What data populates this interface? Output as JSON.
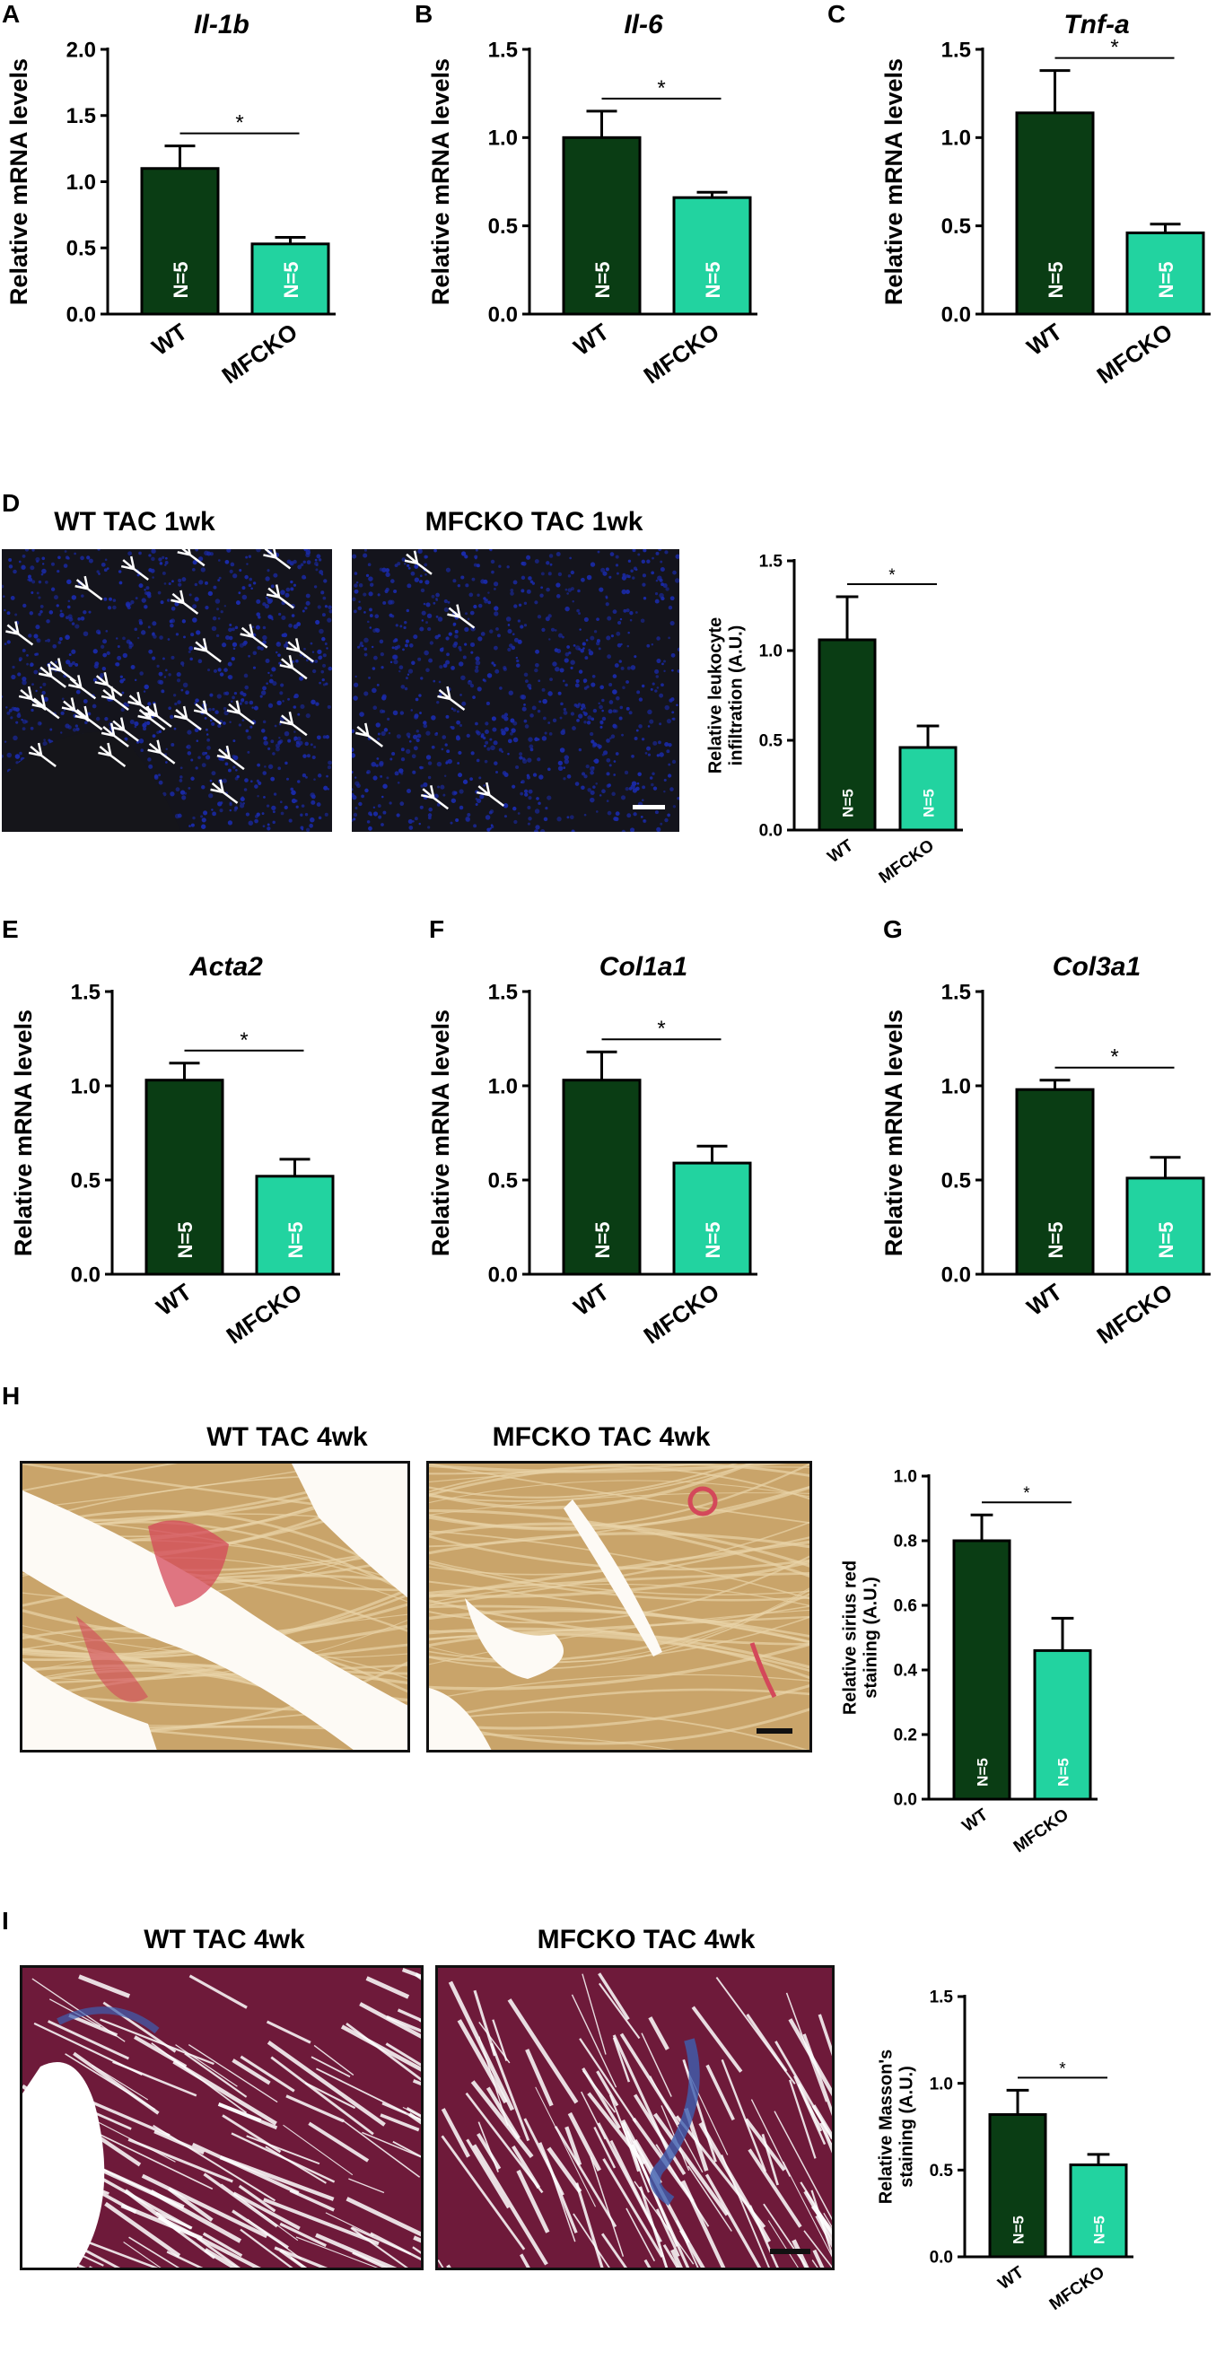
{
  "panels": {
    "A": {
      "letter": "A"
    },
    "B": {
      "letter": "B"
    },
    "C": {
      "letter": "C"
    },
    "D": {
      "letter": "D",
      "img_left_title": "WT TAC 1wk",
      "img_right_title": "MFCKO TAC 1wk"
    },
    "E": {
      "letter": "E"
    },
    "F": {
      "letter": "F"
    },
    "G": {
      "letter": "G"
    },
    "H": {
      "letter": "H",
      "img_left_title": "WT TAC 4wk",
      "img_right_title": "MFCKO TAC 4wk"
    },
    "I": {
      "letter": "I",
      "img_left_title": "WT TAC 4wk",
      "img_right_title": "MFCKO TAC 4wk"
    }
  },
  "colors": {
    "wt": "#0a3d14",
    "mfcko": "#22d3a0",
    "nuclei": "#1a2aa8",
    "sirius_bg": "#c9a46a",
    "sirius_red": "#d4485a",
    "masson_red": "#6e1a3a",
    "masson_blue": "#3d5fb0"
  },
  "chart_data": [
    {
      "id": "A",
      "type": "bar",
      "title": "Il-1b",
      "title_italic": true,
      "ylabel": "Relative mRNA levels",
      "categories": [
        "WT",
        "MFCKO"
      ],
      "values": [
        1.1,
        0.53
      ],
      "errors": [
        0.17,
        0.05
      ],
      "ylim": [
        0,
        2.0
      ],
      "yticks": [
        "0.0",
        "0.5",
        "1.0",
        "1.5",
        "2.0"
      ],
      "n_labels": [
        "N=5",
        "N=5"
      ],
      "significance": "*"
    },
    {
      "id": "B",
      "type": "bar",
      "title": "Il-6",
      "title_italic": true,
      "ylabel": "Relative mRNA levels",
      "categories": [
        "WT",
        "MFCKO"
      ],
      "values": [
        1.0,
        0.66
      ],
      "errors": [
        0.15,
        0.03
      ],
      "ylim": [
        0,
        1.5
      ],
      "yticks": [
        "0.0",
        "0.5",
        "1.0",
        "1.5"
      ],
      "n_labels": [
        "N=5",
        "N=5"
      ],
      "significance": "*"
    },
    {
      "id": "C",
      "type": "bar",
      "title": "Tnf-a",
      "title_italic": true,
      "ylabel": "Relative mRNA levels",
      "categories": [
        "WT",
        "MFCKO"
      ],
      "values": [
        1.14,
        0.46
      ],
      "errors": [
        0.24,
        0.05
      ],
      "ylim": [
        0,
        1.5
      ],
      "yticks": [
        "0.0",
        "0.5",
        "1.0",
        "1.5"
      ],
      "n_labels": [
        "N=5",
        "N=5"
      ],
      "significance": "*"
    },
    {
      "id": "D",
      "type": "bar",
      "title": "",
      "ylabel": [
        "Relative leukocyte",
        "infiltration  (A.U.)"
      ],
      "categories": [
        "WT",
        "MFCKO"
      ],
      "values": [
        1.06,
        0.46
      ],
      "errors": [
        0.24,
        0.12
      ],
      "ylim": [
        0,
        1.5
      ],
      "yticks": [
        "0.0",
        "0.5",
        "1.0",
        "1.5"
      ],
      "n_labels": [
        "N=5",
        "N=5"
      ],
      "significance": "*"
    },
    {
      "id": "E",
      "type": "bar",
      "title": "Acta2",
      "title_italic": true,
      "ylabel": "Relative mRNA levels",
      "categories": [
        "WT",
        "MFCKO"
      ],
      "values": [
        1.03,
        0.52
      ],
      "errors": [
        0.09,
        0.09
      ],
      "ylim": [
        0,
        1.5
      ],
      "yticks": [
        "0.0",
        "0.5",
        "1.0",
        "1.5"
      ],
      "n_labels": [
        "N=5",
        "N=5"
      ],
      "significance": "*"
    },
    {
      "id": "F",
      "type": "bar",
      "title": "Col1a1",
      "title_italic": true,
      "ylabel": "Relative mRNA levels",
      "categories": [
        "WT",
        "MFCKO"
      ],
      "values": [
        1.03,
        0.59
      ],
      "errors": [
        0.15,
        0.09
      ],
      "ylim": [
        0,
        1.5
      ],
      "yticks": [
        "0.0",
        "0.5",
        "1.0",
        "1.5"
      ],
      "n_labels": [
        "N=5",
        "N=5"
      ],
      "significance": "*"
    },
    {
      "id": "G",
      "type": "bar",
      "title": "Col3a1",
      "title_italic": true,
      "ylabel": "Relative mRNA levels",
      "categories": [
        "WT",
        "MFCKO"
      ],
      "values": [
        0.98,
        0.51
      ],
      "errors": [
        0.05,
        0.11
      ],
      "ylim": [
        0,
        1.5
      ],
      "yticks": [
        "0.0",
        "0.5",
        "1.0",
        "1.5"
      ],
      "n_labels": [
        "N=5",
        "N=5"
      ],
      "significance": "*"
    },
    {
      "id": "H",
      "type": "bar",
      "title": "",
      "ylabel": [
        "Relative sirius red",
        "staining (A.U.)"
      ],
      "categories": [
        "WT",
        "MFCKO"
      ],
      "values": [
        0.8,
        0.46
      ],
      "errors": [
        0.08,
        0.1
      ],
      "ylim": [
        0,
        1.0
      ],
      "yticks": [
        "0.0",
        "0.2",
        "0.4",
        "0.6",
        "0.8",
        "1.0"
      ],
      "n_labels": [
        "N=5",
        "N=5"
      ],
      "significance": "*"
    },
    {
      "id": "I",
      "type": "bar",
      "title": "",
      "ylabel": [
        "Relative Masson's",
        "staining (A.U.)"
      ],
      "categories": [
        "WT",
        "MFCKO"
      ],
      "values": [
        0.82,
        0.53
      ],
      "errors": [
        0.14,
        0.06
      ],
      "ylim": [
        0,
        1.5
      ],
      "yticks": [
        "0.0",
        "0.5",
        "1.0",
        "1.5"
      ],
      "n_labels": [
        "N=5",
        "N=5"
      ],
      "significance": "*"
    }
  ]
}
